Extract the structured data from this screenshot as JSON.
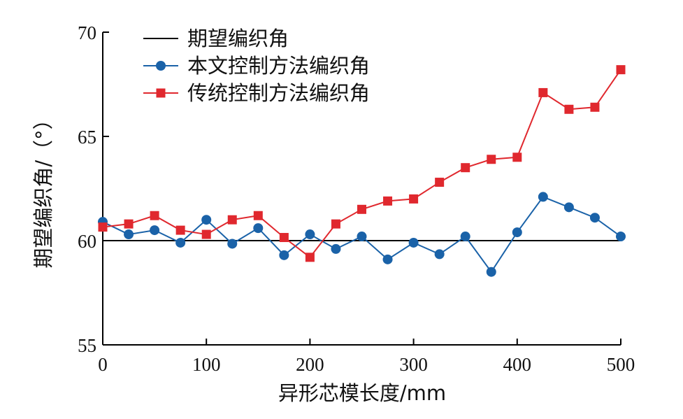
{
  "chart_data": {
    "type": "line",
    "xlabel": "异形芯模长度/mm",
    "ylabel": "期望编织角/（°）",
    "xlim": [
      0,
      500
    ],
    "ylim": [
      55,
      70
    ],
    "xticks": [
      0,
      100,
      200,
      300,
      400,
      500
    ],
    "yticks": [
      55,
      60,
      65,
      70
    ],
    "grid": false,
    "legend_position": "top-left",
    "x": [
      0,
      25,
      50,
      75,
      100,
      125,
      150,
      175,
      200,
      225,
      250,
      275,
      300,
      325,
      350,
      375,
      400,
      425,
      450,
      475,
      500
    ],
    "series": [
      {
        "name": "期望编织角",
        "color": "#000000",
        "marker": "none",
        "x": [
          0,
          500
        ],
        "values": [
          60,
          60
        ]
      },
      {
        "name": "本文控制方法编织角",
        "color": "#1a62a8",
        "marker": "circle",
        "values": [
          60.9,
          60.3,
          60.5,
          59.9,
          61.0,
          59.85,
          60.6,
          59.3,
          60.3,
          59.6,
          60.2,
          59.1,
          59.9,
          59.35,
          60.2,
          58.5,
          60.4,
          62.1,
          61.6,
          61.1,
          60.2
        ]
      },
      {
        "name": "传统控制方法编织角",
        "color": "#e0282e",
        "marker": "square",
        "values": [
          60.65,
          60.8,
          61.2,
          60.5,
          60.3,
          61.0,
          61.2,
          60.15,
          59.2,
          60.8,
          61.5,
          61.9,
          62.0,
          62.8,
          63.5,
          63.9,
          64.0,
          67.1,
          66.3,
          66.4,
          68.2
        ]
      }
    ]
  }
}
